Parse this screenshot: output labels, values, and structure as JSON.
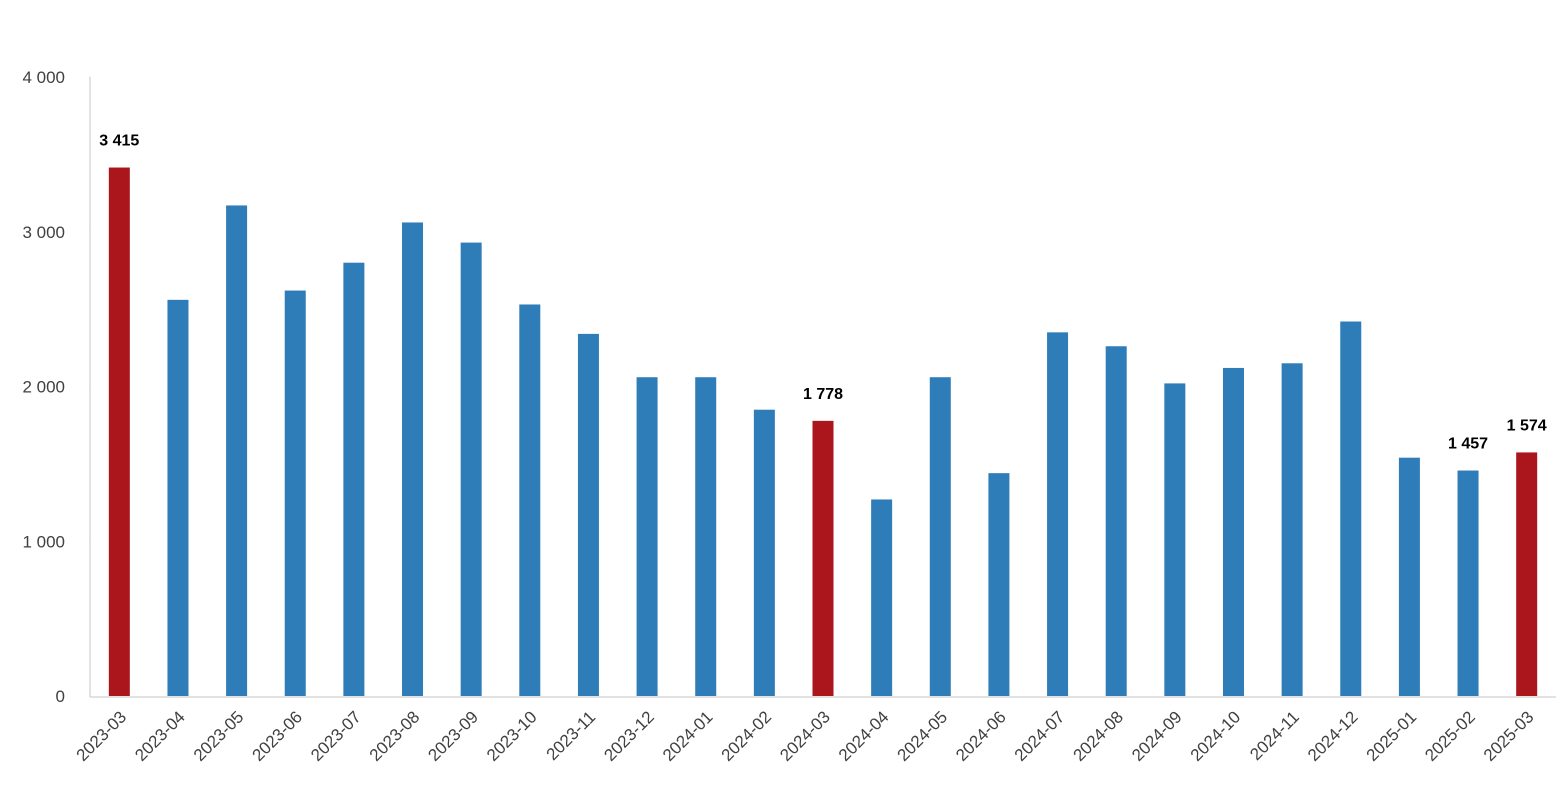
{
  "chart_data": {
    "type": "bar",
    "categories": [
      "2023-03",
      "2023-04",
      "2023-05",
      "2023-06",
      "2023-07",
      "2023-08",
      "2023-09",
      "2023-10",
      "2023-11",
      "2023-12",
      "2024-01",
      "2024-02",
      "2024-03",
      "2024-04",
      "2024-05",
      "2024-06",
      "2024-07",
      "2024-08",
      "2024-09",
      "2024-10",
      "2024-11",
      "2024-12",
      "2025-01",
      "2025-02",
      "2025-03"
    ],
    "values": [
      3415,
      2560,
      3170,
      2620,
      2800,
      3060,
      2930,
      2530,
      2340,
      2060,
      2060,
      1850,
      1778,
      1270,
      2060,
      1440,
      2350,
      2260,
      2020,
      2120,
      2150,
      2420,
      1540,
      1457,
      1574
    ],
    "value_labels": [
      "3 415",
      null,
      null,
      null,
      null,
      null,
      null,
      null,
      null,
      null,
      null,
      null,
      "1 778",
      null,
      null,
      null,
      null,
      null,
      null,
      null,
      null,
      null,
      null,
      "1 457",
      "1 574"
    ],
    "colors": [
      "#ab161d",
      "#2e7cb8",
      "#2e7cb8",
      "#2e7cb8",
      "#2e7cb8",
      "#2e7cb8",
      "#2e7cb8",
      "#2e7cb8",
      "#2e7cb8",
      "#2e7cb8",
      "#2e7cb8",
      "#2e7cb8",
      "#ab161d",
      "#2e7cb8",
      "#2e7cb8",
      "#2e7cb8",
      "#2e7cb8",
      "#2e7cb8",
      "#2e7cb8",
      "#2e7cb8",
      "#2e7cb8",
      "#2e7cb8",
      "#2e7cb8",
      "#2e7cb8",
      "#ab161d"
    ],
    "ylim": [
      0,
      4000
    ],
    "yticks": [
      0,
      {
        "value": 1000,
        "label": "1 000"
      },
      {
        "value": 2000,
        "label": "2 000"
      },
      {
        "value": 3000,
        "label": "3 000"
      },
      {
        "value": 4000,
        "label": "4 000"
      }
    ],
    "grid": false
  }
}
